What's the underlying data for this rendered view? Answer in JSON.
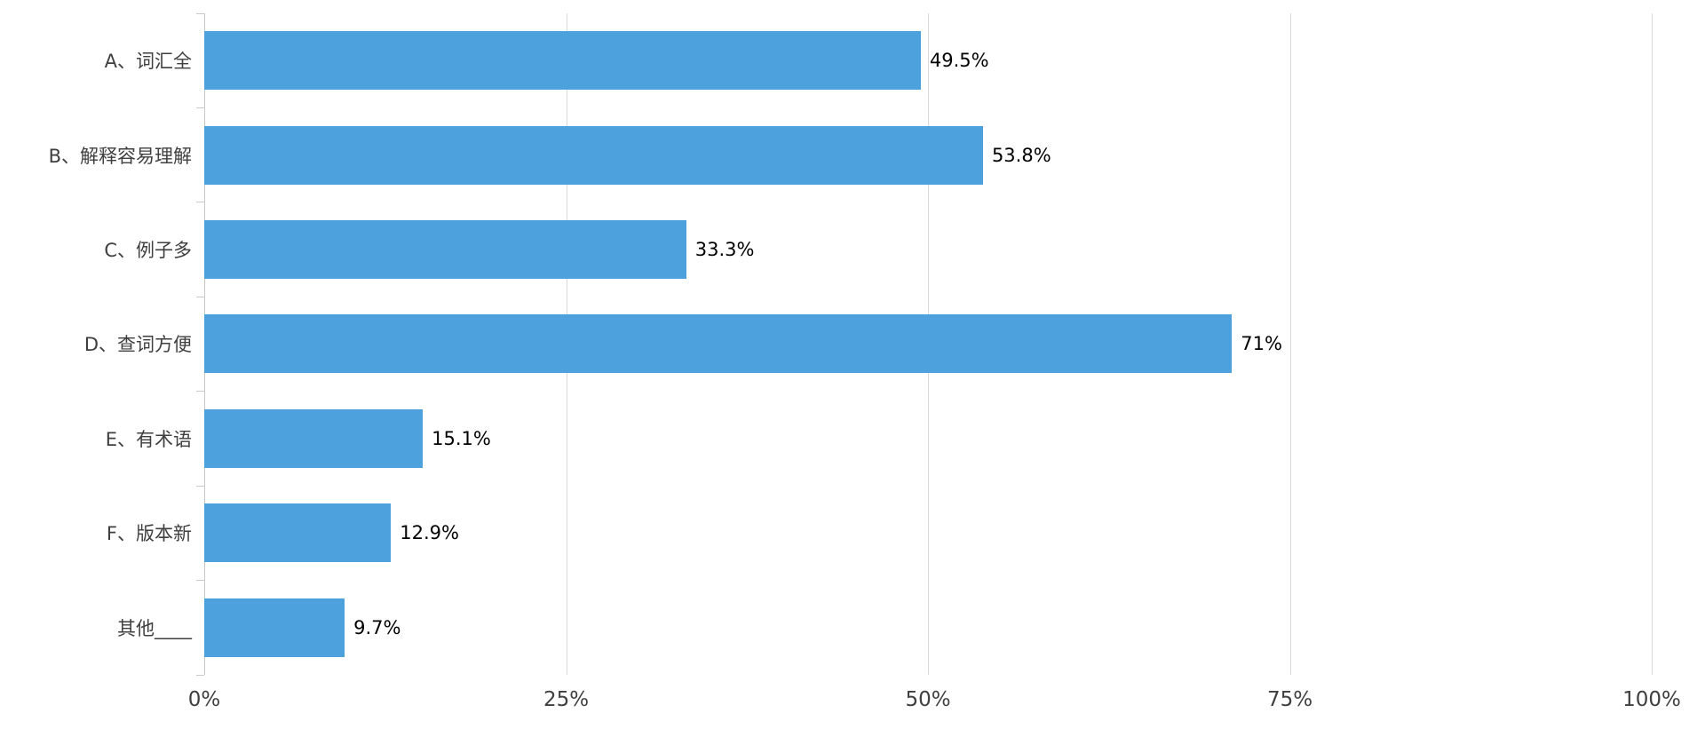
{
  "chart_data": {
    "type": "bar",
    "orientation": "horizontal",
    "title": "",
    "xlabel": "",
    "ylabel": "",
    "categories": [
      "A、词汇全",
      "B、解释容易理解",
      "C、例子多",
      "D、查词方便",
      "E、有术语",
      "F、版本新",
      "其他____"
    ],
    "values": [
      49.5,
      53.8,
      33.3,
      71,
      15.1,
      12.9,
      9.7
    ],
    "value_labels": [
      "49.5%",
      "53.8%",
      "33.3%",
      "71%",
      "15.1%",
      "12.9%",
      "9.7%"
    ],
    "x_ticks": [
      "0%",
      "25%",
      "50%",
      "75%",
      "100%"
    ],
    "xlim": [
      0,
      100
    ],
    "grid": true,
    "legend": "none",
    "colors": {
      "bar": "#4da1dd",
      "gridline": "#d9d9d9",
      "axis_line": "#c9c9c9",
      "category_text": "#3f3f3f",
      "value_text": "#000000",
      "background": "#ffffff"
    }
  }
}
